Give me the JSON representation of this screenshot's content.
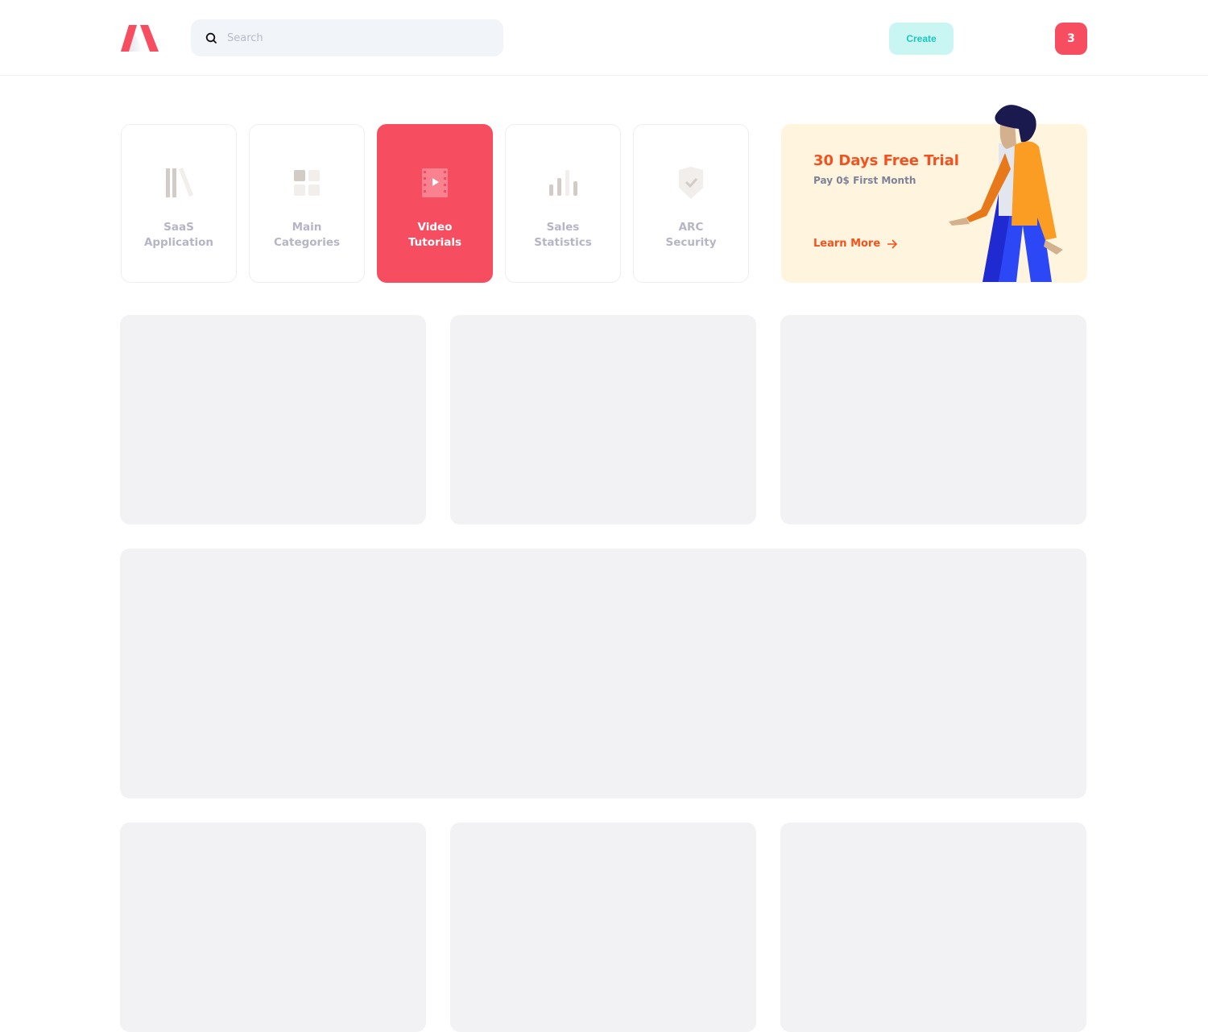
{
  "header": {
    "search": {
      "placeholder": "Search",
      "icon": "search-icon"
    },
    "create_label": "Create",
    "notification_count": "3",
    "accent_color": "#f64e60"
  },
  "categories": [
    {
      "label": "SaaS\nApplication",
      "icon": "library-icon",
      "active": false
    },
    {
      "label": "Main\nCategories",
      "icon": "grid-icon",
      "active": false
    },
    {
      "label": "Video\nTutorials",
      "icon": "video-icon",
      "active": true
    },
    {
      "label": "Sales\nStatistics",
      "icon": "bar-chart-icon",
      "active": false
    },
    {
      "label": "ARC\nSecurity",
      "icon": "shield-check-icon",
      "active": false
    }
  ],
  "promo": {
    "title": "30 Days Free Trial",
    "subtitle": "Pay 0$ First Month",
    "link_label": "Learn More",
    "title_color": "#f4511e"
  }
}
